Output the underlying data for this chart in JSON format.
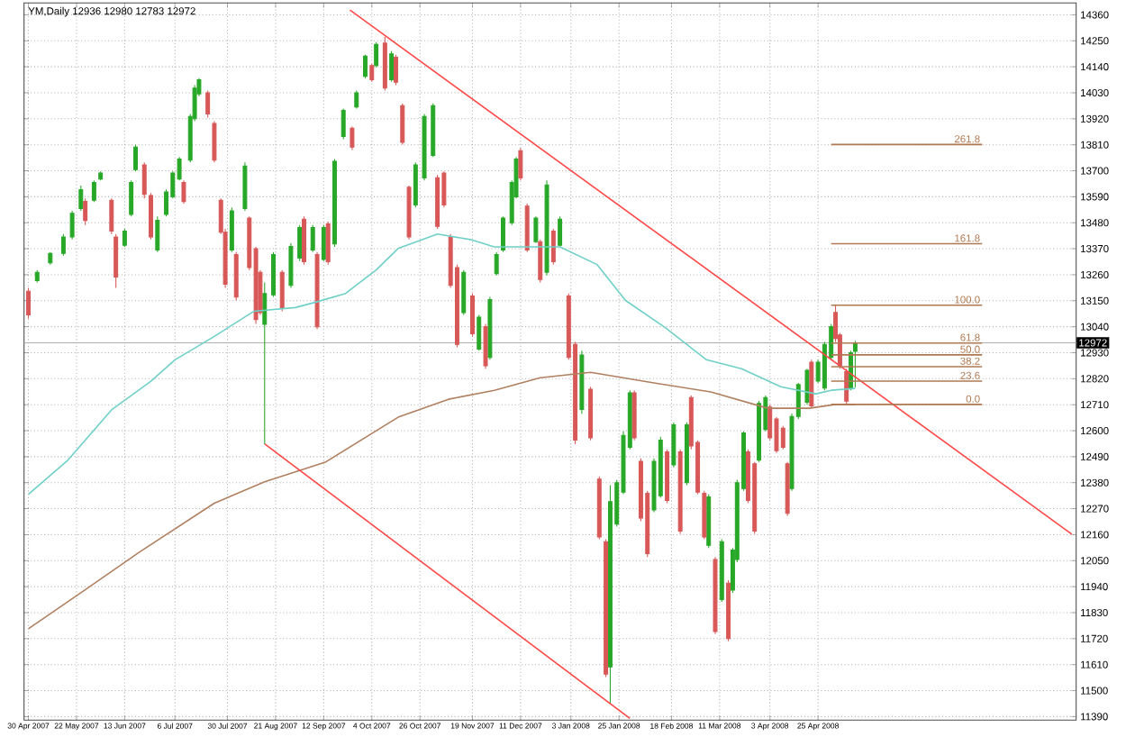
{
  "chart_data": {
    "type": "candlestick",
    "title": "YM,Daily 12936 12980 12783 12972",
    "xlim": [
      "2007-04-28",
      "2008-08-21"
    ],
    "ylim": [
      11375,
      14410
    ],
    "grid": true,
    "xticks": [
      {
        "value": "2007-04-30",
        "label": "30 Apr 2007"
      },
      {
        "value": "2007-05-22",
        "label": "22 May 2007"
      },
      {
        "value": "2007-06-13",
        "label": "13 Jun 2007"
      },
      {
        "value": "2007-07-06",
        "label": "6 Jul 2007"
      },
      {
        "value": "2007-07-30",
        "label": "30 Jul 2007"
      },
      {
        "value": "2007-08-21",
        "label": "21 Aug 2007"
      },
      {
        "value": "2007-09-12",
        "label": "12 Sep 2007"
      },
      {
        "value": "2007-10-04",
        "label": "4 Oct 2007"
      },
      {
        "value": "2007-10-26",
        "label": "26 Oct 2007"
      },
      {
        "value": "2007-11-19",
        "label": "19 Nov 2007"
      },
      {
        "value": "2007-12-11",
        "label": "11 Dec 2007"
      },
      {
        "value": "2008-01-03",
        "label": "3 Jan 2008"
      },
      {
        "value": "2008-01-25",
        "label": "25 Jan 2008"
      },
      {
        "value": "2008-02-18",
        "label": "18 Feb 2008"
      },
      {
        "value": "2008-03-11",
        "label": "11 Mar 2008"
      },
      {
        "value": "2008-04-03",
        "label": "3 Apr 2008"
      },
      {
        "value": "2008-04-25",
        "label": "25 Apr 2008"
      }
    ],
    "yticks": [
      11390,
      11500,
      11610,
      11720,
      11830,
      11940,
      12050,
      12160,
      12270,
      12380,
      12490,
      12600,
      12710,
      12820,
      12930,
      13040,
      13150,
      13260,
      13370,
      13480,
      13590,
      13700,
      13810,
      13920,
      14030,
      14140,
      14250,
      14360
    ],
    "ref_lines": [
      {
        "axis": "y",
        "value": 12972,
        "label": "12972",
        "color": "#b0b0b0"
      }
    ],
    "series": [
      {
        "color": "#28a828",
        "x": [
          "2007-05-04",
          "2007-05-10",
          "2007-05-16",
          "2007-05-20",
          "2007-05-24",
          "2007-05-30",
          "2007-06-02",
          "2007-06-13",
          "2007-06-16",
          "2007-06-18",
          "2007-06-28",
          "2007-07-02",
          "2007-07-05",
          "2007-07-08",
          "2007-07-13",
          "2007-07-15",
          "2007-07-17",
          "2007-08-01",
          "2007-08-07",
          "2007-08-16",
          "2007-08-20",
          "2007-08-28",
          "2007-09-01",
          "2007-09-07",
          "2007-09-12",
          "2007-09-17",
          "2007-09-21",
          "2007-09-27",
          "2007-10-01",
          "2007-10-06",
          "2007-10-13",
          "2007-10-24",
          "2007-10-28",
          "2007-11-01",
          "2007-11-15",
          "2007-11-22",
          "2007-11-27",
          "2007-11-30",
          "2007-12-03",
          "2007-12-07",
          "2007-12-09",
          "2007-12-18",
          "2007-12-23",
          "2007-12-29",
          "2008-01-08",
          "2008-01-21",
          "2008-01-24",
          "2008-01-27",
          "2008-01-30",
          "2008-02-10",
          "2008-02-13",
          "2008-02-19",
          "2008-02-25",
          "2008-03-06",
          "2008-03-12",
          "2008-03-17",
          "2008-03-19",
          "2008-03-22",
          "2008-03-29",
          "2008-04-01",
          "2008-04-13",
          "2008-04-16",
          "2008-04-20",
          "2008-04-25",
          "2008-04-28",
          "2008-05-01",
          "2008-05-10",
          "2008-05-12"
        ],
        "ohlc": [
          [
            13235,
            13280,
            13227,
            13270
          ],
          [
            13310,
            13356,
            13303,
            13350
          ],
          [
            13350,
            13432,
            13341,
            13420
          ],
          [
            13420,
            13530,
            13409,
            13520
          ],
          [
            13540,
            13637,
            13530,
            13620
          ],
          [
            13575,
            13659,
            13568,
            13650
          ],
          [
            13665,
            13697,
            13659,
            13690
          ],
          [
            13385,
            13454,
            13378,
            13445
          ],
          [
            13515,
            13659,
            13507,
            13650
          ],
          [
            13705,
            13811,
            13697,
            13800
          ],
          [
            13365,
            13507,
            13356,
            13490
          ],
          [
            13515,
            13621,
            13507,
            13610
          ],
          [
            13590,
            13697,
            13583,
            13690
          ],
          [
            13665,
            13758,
            13659,
            13750
          ],
          [
            13745,
            13940,
            13735,
            13930
          ],
          [
            13920,
            14062,
            13910,
            14050
          ],
          [
            14025,
            14092,
            14016,
            14085
          ],
          [
            13365,
            13545,
            13356,
            13530
          ],
          [
            13540,
            13735,
            13530,
            13720
          ],
          [
            13050,
            13227,
            12543,
            13180
          ],
          [
            13175,
            13356,
            13166,
            13345
          ],
          [
            13215,
            13394,
            13204,
            13380
          ],
          [
            13330,
            13470,
            13318,
            13460
          ],
          [
            13365,
            13470,
            13356,
            13460
          ],
          [
            13325,
            13470,
            13318,
            13460
          ],
          [
            13390,
            13750,
            13378,
            13740
          ],
          [
            13845,
            13963,
            13834,
            13955
          ],
          [
            13970,
            14039,
            13963,
            14030
          ],
          [
            14100,
            14191,
            14092,
            14185
          ],
          [
            14145,
            14244,
            14138,
            14235
          ],
          [
            14085,
            14206,
            14077,
            14195
          ],
          [
            13555,
            13735,
            13545,
            13725
          ],
          [
            13670,
            13940,
            13659,
            13930
          ],
          [
            13765,
            13985,
            13758,
            13975
          ],
          [
            13100,
            13280,
            13090,
            13270
          ],
          [
            12945,
            13090,
            12938,
            13080
          ],
          [
            12910,
            13166,
            12900,
            13155
          ],
          [
            13265,
            13356,
            13257,
            13345
          ],
          [
            13365,
            13507,
            13356,
            13500
          ],
          [
            13480,
            13659,
            13470,
            13650
          ],
          [
            13590,
            13758,
            13583,
            13750
          ],
          [
            13400,
            13507,
            13394,
            13500
          ],
          [
            13270,
            13659,
            13257,
            13640
          ],
          [
            13385,
            13507,
            13378,
            13495
          ],
          [
            12690,
            12938,
            12672,
            12920
          ],
          [
            11600,
            12369,
            11443,
            12300
          ],
          [
            12205,
            12392,
            12194,
            12380
          ],
          [
            12340,
            12597,
            12331,
            12580
          ],
          [
            12530,
            12771,
            12521,
            12760
          ],
          [
            12265,
            12483,
            12255,
            12470
          ],
          [
            12325,
            12574,
            12316,
            12560
          ],
          [
            12455,
            12635,
            12445,
            12625
          ],
          [
            12380,
            12635,
            12369,
            12625
          ],
          [
            12115,
            12331,
            12103,
            12320
          ],
          [
            11885,
            12141,
            11876,
            12130
          ],
          [
            11925,
            12103,
            11914,
            12095
          ],
          [
            12055,
            12392,
            12043,
            12380
          ],
          [
            12355,
            12597,
            12346,
            12590
          ],
          [
            12475,
            12726,
            12468,
            12715
          ],
          [
            12605,
            12749,
            12597,
            12740
          ],
          [
            12355,
            12673,
            12346,
            12660
          ],
          [
            12660,
            12802,
            12650,
            12795
          ],
          [
            12720,
            12862,
            12711,
            12855
          ],
          [
            12810,
            12900,
            12802,
            12890
          ],
          [
            12780,
            12976,
            12771,
            12965
          ],
          [
            12910,
            13052,
            12900,
            13040
          ],
          [
            12780,
            12938,
            12771,
            12930
          ],
          [
            12936,
            12980,
            12783,
            12972
          ]
        ]
      },
      {
        "color": "#d85858",
        "x": [
          "2007-04-30",
          "2007-05-26",
          "2007-06-07",
          "2007-06-09",
          "2007-06-22",
          "2007-06-25",
          "2007-07-10",
          "2007-07-21",
          "2007-07-24",
          "2007-07-27",
          "2007-07-29",
          "2007-08-03",
          "2007-08-09",
          "2007-08-12",
          "2007-08-14",
          "2007-08-24",
          "2007-09-03",
          "2007-09-09",
          "2007-09-14",
          "2007-09-25",
          "2007-10-04",
          "2007-10-10",
          "2007-10-15",
          "2007-10-18",
          "2007-10-21",
          "2007-11-03",
          "2007-11-06",
          "2007-11-09",
          "2007-11-12",
          "2007-11-19",
          "2007-11-25",
          "2007-12-11",
          "2007-12-14",
          "2007-12-20",
          "2007-12-26",
          "2008-01-02",
          "2008-01-05",
          "2008-01-12",
          "2008-01-16",
          "2008-01-19",
          "2008-02-01",
          "2008-02-04",
          "2008-02-07",
          "2008-02-16",
          "2008-02-22",
          "2008-02-27",
          "2008-03-01",
          "2008-03-04",
          "2008-03-09",
          "2008-03-15",
          "2008-03-24",
          "2008-03-27",
          "2008-04-03",
          "2008-04-06",
          "2008-04-09",
          "2008-04-11",
          "2008-04-22",
          "2008-05-03",
          "2008-05-05",
          "2008-05-08"
        ],
        "ohlc": [
          [
            13190,
            13204,
            13075,
            13090
          ],
          [
            13570,
            13583,
            13470,
            13490
          ],
          [
            13575,
            13583,
            13432,
            13445
          ],
          [
            13420,
            13432,
            13204,
            13250
          ],
          [
            13725,
            13735,
            13583,
            13600
          ],
          [
            13595,
            13606,
            13409,
            13420
          ],
          [
            13650,
            13659,
            13561,
            13570
          ],
          [
            14030,
            14039,
            13925,
            13940
          ],
          [
            13900,
            13910,
            13735,
            13745
          ],
          [
            13575,
            13583,
            13432,
            13440
          ],
          [
            13440,
            13454,
            13204,
            13220
          ],
          [
            13345,
            13356,
            13151,
            13165
          ],
          [
            13500,
            13507,
            13280,
            13290
          ],
          [
            13370,
            13378,
            13052,
            13070
          ],
          [
            13270,
            13280,
            13090,
            13100
          ],
          [
            13270,
            13280,
            13105,
            13120
          ],
          [
            13495,
            13507,
            13303,
            13315
          ],
          [
            13345,
            13356,
            13029,
            13040
          ],
          [
            13475,
            13485,
            13303,
            13315
          ],
          [
            13880,
            13887,
            13788,
            13800
          ],
          [
            14145,
            14153,
            14077,
            14085
          ],
          [
            14240,
            14267,
            14039,
            14050
          ],
          [
            14180,
            14191,
            14062,
            14075
          ],
          [
            13975,
            13985,
            13811,
            13820
          ],
          [
            13630,
            13637,
            13409,
            13420
          ],
          [
            13670,
            13682,
            13454,
            13465
          ],
          [
            13690,
            13697,
            13545,
            13555
          ],
          [
            13420,
            13432,
            13204,
            13215
          ],
          [
            13290,
            13303,
            12953,
            12965
          ],
          [
            13170,
            13181,
            12999,
            13010
          ],
          [
            13040,
            13052,
            12862,
            12875
          ],
          [
            13785,
            13796,
            13659,
            13670
          ],
          [
            13550,
            13561,
            13356,
            13365
          ],
          [
            13400,
            13409,
            13227,
            13240
          ],
          [
            13445,
            13454,
            13303,
            13315
          ],
          [
            13170,
            13181,
            12900,
            12910
          ],
          [
            12965,
            12976,
            12543,
            12560
          ],
          [
            12775,
            12786,
            12559,
            12570
          ],
          [
            12395,
            12407,
            12141,
            12150
          ],
          [
            12130,
            12141,
            11557,
            11570
          ],
          [
            12760,
            12771,
            12559,
            12570
          ],
          [
            12470,
            12483,
            12217,
            12230
          ],
          [
            12335,
            12346,
            12065,
            12080
          ],
          [
            12510,
            12521,
            12293,
            12305
          ],
          [
            12510,
            12521,
            12164,
            12175
          ],
          [
            12740,
            12749,
            12521,
            12535
          ],
          [
            12550,
            12559,
            12331,
            12340
          ],
          [
            12335,
            12346,
            12141,
            12150
          ],
          [
            12055,
            12065,
            11739,
            11750
          ],
          [
            11955,
            11967,
            11709,
            11720
          ],
          [
            12510,
            12521,
            12293,
            12305
          ],
          [
            12460,
            12468,
            12164,
            12175
          ],
          [
            12700,
            12711,
            12559,
            12570
          ],
          [
            12650,
            12657,
            12506,
            12515
          ],
          [
            12610,
            12620,
            12521,
            12530
          ],
          [
            12460,
            12468,
            12240,
            12250
          ],
          [
            12890,
            12900,
            12695,
            12705
          ],
          [
            13100,
            13131,
            12976,
            12990
          ],
          [
            13005,
            13014,
            12862,
            12875
          ],
          [
            12850,
            12862,
            12711,
            12725
          ]
        ]
      },
      {
        "type": "line",
        "color": "#6fd0c8",
        "x": [
          "2007-04-30",
          "2007-05-18",
          "2007-06-07",
          "2007-06-25",
          "2007-07-06",
          "2007-07-24",
          "2007-08-11",
          "2007-08-30",
          "2007-09-08",
          "2007-09-22",
          "2007-10-06",
          "2007-10-16",
          "2007-11-03",
          "2007-11-18",
          "2007-11-29",
          "2007-12-12",
          "2007-12-29",
          "2008-01-15",
          "2008-01-28",
          "2008-02-15",
          "2008-03-05",
          "2008-03-21",
          "2008-04-08",
          "2008-04-24",
          "2008-05-01",
          "2008-05-12"
        ],
        "values": [
          12331,
          12475,
          12688,
          12809,
          12900,
          12999,
          13105,
          13121,
          13143,
          13181,
          13280,
          13371,
          13432,
          13409,
          13378,
          13378,
          13378,
          13303,
          13151,
          13037,
          12900,
          12862,
          12786,
          12756,
          12771,
          12779
        ]
      },
      {
        "type": "line",
        "color": "#b08060",
        "x": [
          "2007-04-30",
          "2007-05-24",
          "2007-06-20",
          "2007-07-24",
          "2007-08-16",
          "2007-09-13",
          "2007-10-16",
          "2007-11-08",
          "2007-11-29",
          "2007-12-20",
          "2008-01-12",
          "2008-02-10",
          "2008-03-07",
          "2008-04-02",
          "2008-04-21",
          "2008-05-03",
          "2008-05-12"
        ],
        "values": [
          11762,
          11914,
          12088,
          12293,
          12384,
          12468,
          12657,
          12733,
          12771,
          12824,
          12847,
          12802,
          12764,
          12695,
          12695,
          12711,
          12711
        ]
      },
      {
        "type": "line",
        "color": "#ff4848",
        "x": [
          "2007-09-24",
          "2008-08-19"
        ],
        "values": [
          14380,
          12162
        ]
      },
      {
        "type": "line",
        "color": "#ff4848",
        "x": [
          "2007-08-16",
          "2008-01-30"
        ],
        "values": [
          12544,
          11382
        ]
      },
      {
        "type": "line",
        "name": "0.0",
        "color": "#b07850",
        "x": [
          "2008-05-01",
          "2008-07-09"
        ],
        "values": [
          12711,
          12711
        ]
      },
      {
        "type": "line",
        "name": "23.6",
        "color": "#b07850",
        "x": [
          "2008-05-01",
          "2008-07-09"
        ],
        "values": [
          12810,
          12810
        ]
      },
      {
        "type": "line",
        "name": "38.2",
        "color": "#b07850",
        "x": [
          "2008-05-01",
          "2008-07-09"
        ],
        "values": [
          12871,
          12871
        ]
      },
      {
        "type": "line",
        "name": "50.0",
        "color": "#b07850",
        "x": [
          "2008-05-01",
          "2008-07-09"
        ],
        "values": [
          12921,
          12921
        ]
      },
      {
        "type": "line",
        "name": "61.8",
        "color": "#b07850",
        "x": [
          "2008-05-01",
          "2008-07-09"
        ],
        "values": [
          12971,
          12971
        ]
      },
      {
        "type": "line",
        "name": "100.0",
        "color": "#b07850",
        "x": [
          "2008-05-01",
          "2008-07-09"
        ],
        "values": [
          13131,
          13131
        ]
      },
      {
        "type": "line",
        "name": "161.8",
        "color": "#b07850",
        "x": [
          "2008-05-01",
          "2008-07-09"
        ],
        "values": [
          13391,
          13391
        ]
      },
      {
        "type": "line",
        "name": "261.8",
        "color": "#b07850",
        "x": [
          "2008-05-01",
          "2008-07-09"
        ],
        "values": [
          13811,
          13811
        ]
      }
    ]
  }
}
